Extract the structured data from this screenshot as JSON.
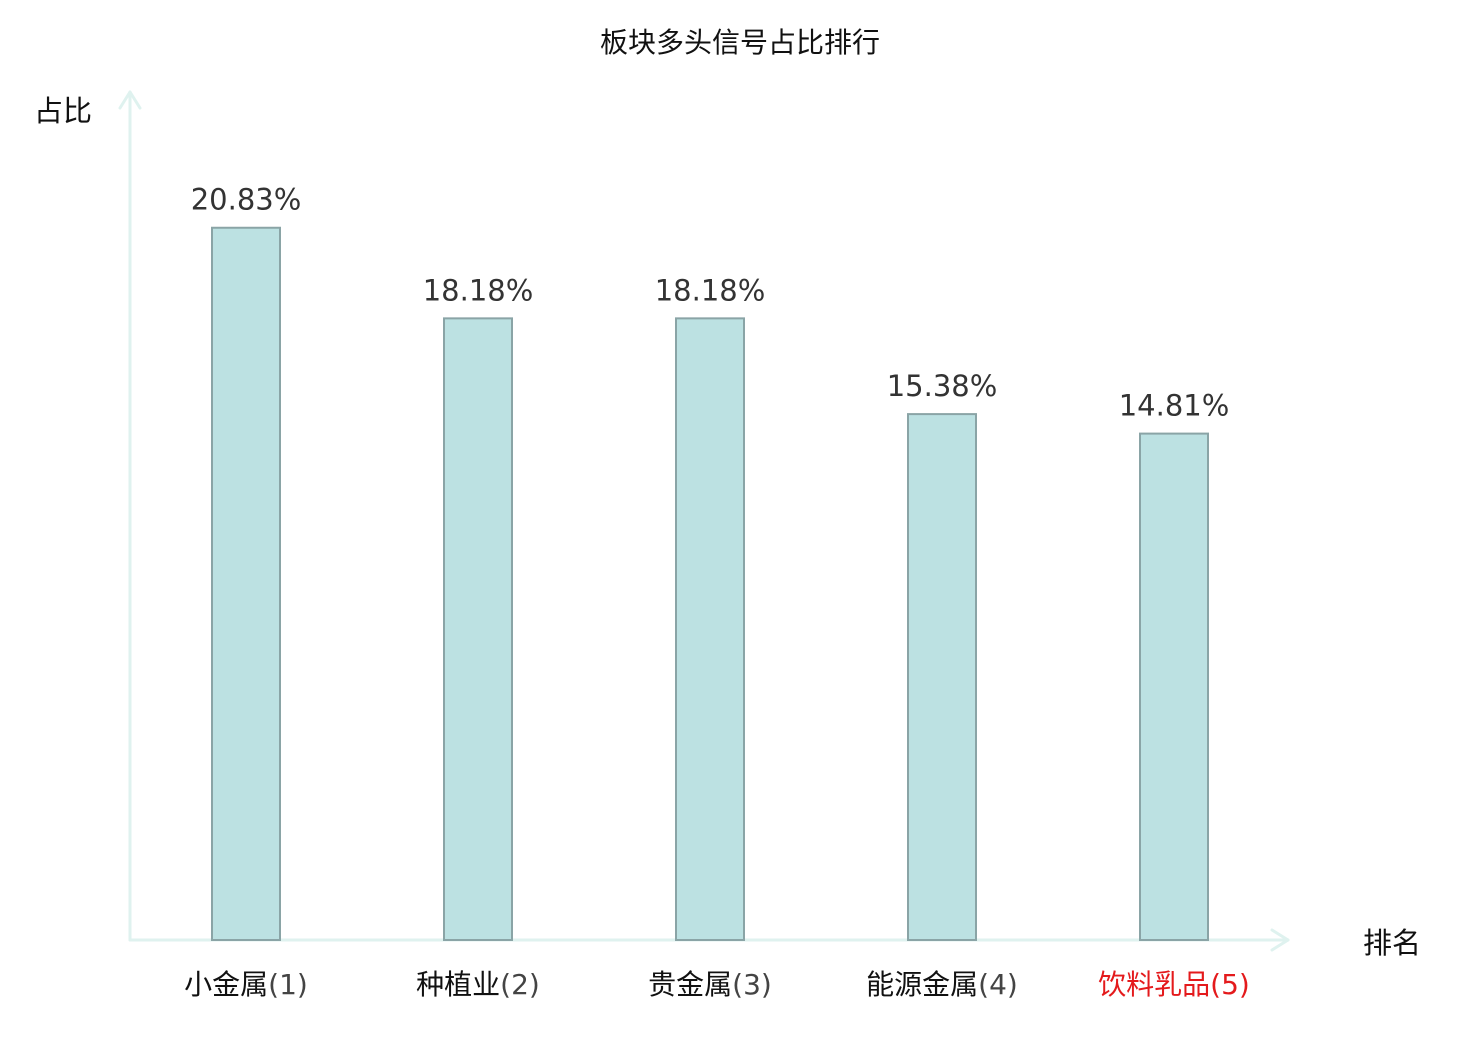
{
  "colors": {
    "bar_fill": "#bce1e2",
    "bar_stroke": "#8aa4a6",
    "axis": "#dff2ef",
    "highlight": "#e41a1c"
  },
  "chart_data": {
    "type": "bar",
    "title": "板块多头信号占比排行",
    "xlabel": "排名",
    "ylabel": "占比",
    "categories": [
      "小金属",
      "种植业",
      "贵金属",
      "能源金属",
      "饮料乳品"
    ],
    "ranks": [
      "(1)",
      "(2)",
      "(3)",
      "(4)",
      "(5)"
    ],
    "values": [
      20.83,
      18.18,
      18.18,
      15.38,
      14.81
    ],
    "value_labels": [
      "20.83%",
      "18.18%",
      "18.18%",
      "15.38%",
      "14.81%"
    ],
    "highlight_index": 4,
    "ylim": [
      0,
      24.8
    ],
    "grid": false,
    "legend": "none"
  }
}
